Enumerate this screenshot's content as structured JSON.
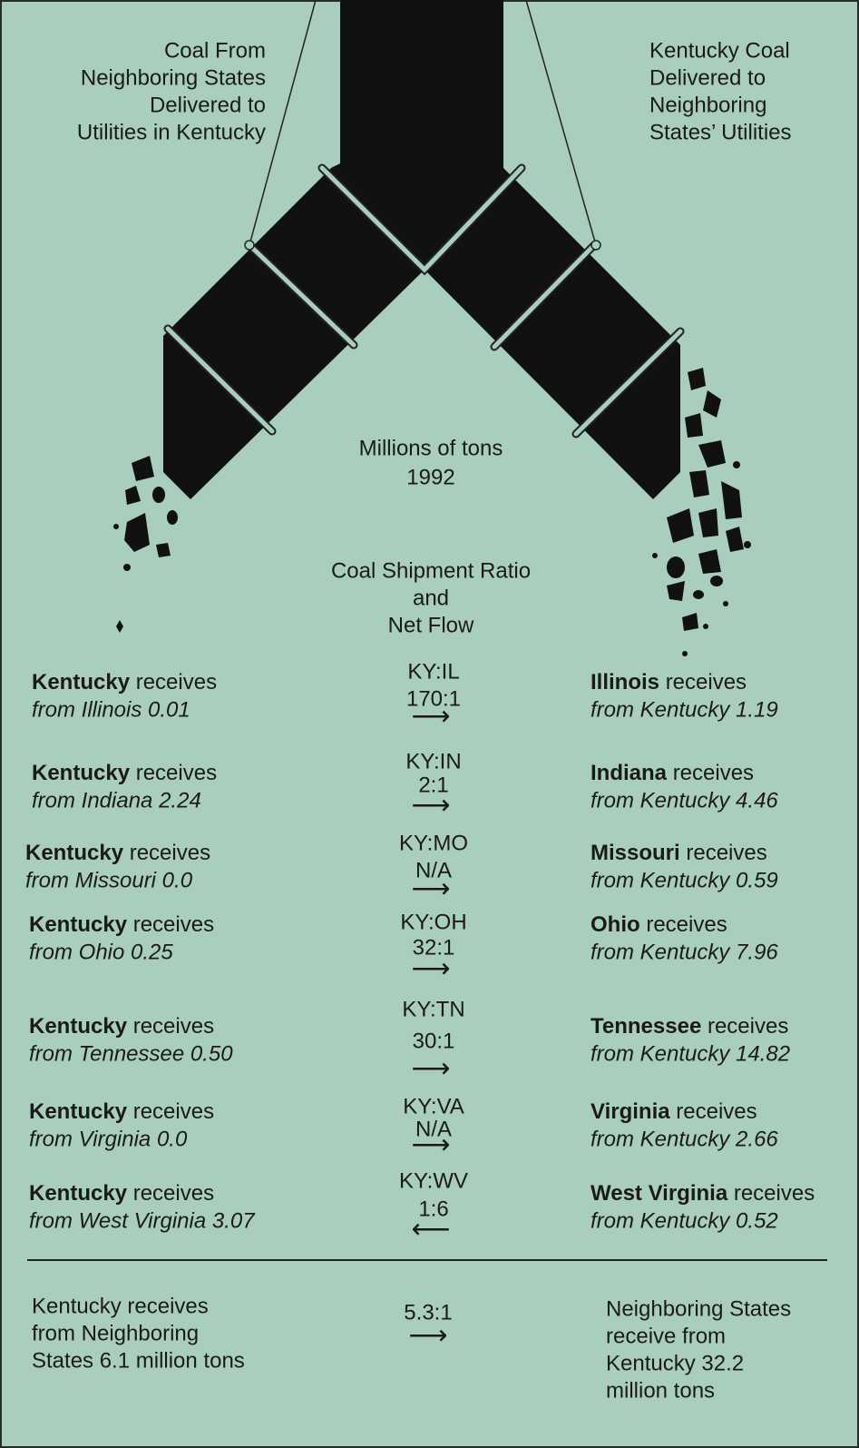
{
  "left_caption": [
    "Coal From",
    "Neighboring States",
    "Delivered to",
    "Utilities in Kentucky"
  ],
  "right_caption": [
    "Kentucky Coal",
    "Delivered to",
    "Neighboring",
    "States’ Utilities"
  ],
  "center_caption": [
    "Millions of tons",
    "1992"
  ],
  "ratio_heading": [
    "Coal Shipment Ratio",
    "and",
    "Net Flow"
  ],
  "rows": [
    {
      "left_state": "Kentucky",
      "left_verb": "receives",
      "left_from": "from Illinois 0.01",
      "pair": "KY:IL",
      "ratio": "170:1",
      "arrow": "⟶",
      "right_state": "Illinois",
      "right_verb": "receives",
      "right_from": "from Kentucky 1.19"
    },
    {
      "left_state": "Kentucky",
      "left_verb": "receives",
      "left_from": "from Indiana 2.24",
      "pair": "KY:IN",
      "ratio": "2:1",
      "arrow": "⟶",
      "right_state": "Indiana",
      "right_verb": "receives",
      "right_from": "from Kentucky 4.46"
    },
    {
      "left_state": "Kentucky",
      "left_verb": "receives",
      "left_from": "from Missouri 0.0",
      "pair": "KY:MO",
      "ratio": "N/A",
      "arrow": "⟶",
      "right_state": "Missouri",
      "right_verb": "receives",
      "right_from": "from Kentucky 0.59"
    },
    {
      "left_state": "Kentucky",
      "left_verb": "receives",
      "left_from": "from Ohio 0.25",
      "pair": "KY:OH",
      "ratio": "32:1",
      "arrow": "⟶",
      "right_state": "Ohio",
      "right_verb": "receives",
      "right_from": "from Kentucky 7.96"
    },
    {
      "left_state": "Kentucky",
      "left_verb": "receives",
      "left_from": "from Tennessee 0.50",
      "pair": "KY:TN",
      "ratio": "30:1",
      "arrow": "⟶",
      "right_state": "Tennessee",
      "right_verb": "receives",
      "right_from": "from Kentucky 14.82"
    },
    {
      "left_state": "Kentucky",
      "left_verb": "receives",
      "left_from": "from Virginia 0.0",
      "pair": "KY:VA",
      "ratio": "N/A",
      "arrow": "⟶",
      "right_state": "Virginia",
      "right_verb": "receives",
      "right_from": "from Kentucky 2.66"
    },
    {
      "left_state": "Kentucky",
      "left_verb": "receives",
      "left_from": "from West Virginia 3.07",
      "pair": "KY:WV",
      "ratio": "1:6",
      "arrow": "⟵",
      "right_state": "West Virginia",
      "right_verb": "receives",
      "right_from": "from Kentucky 0.52"
    }
  ],
  "summary": {
    "left": [
      "Kentucky receives",
      "from Neighboring",
      "States 6.1 million tons"
    ],
    "ratio": "5.3:1",
    "arrow": "⟶",
    "right": [
      "Neighboring States",
      "receive from",
      "Kentucky 32.2",
      "million tons"
    ]
  }
}
